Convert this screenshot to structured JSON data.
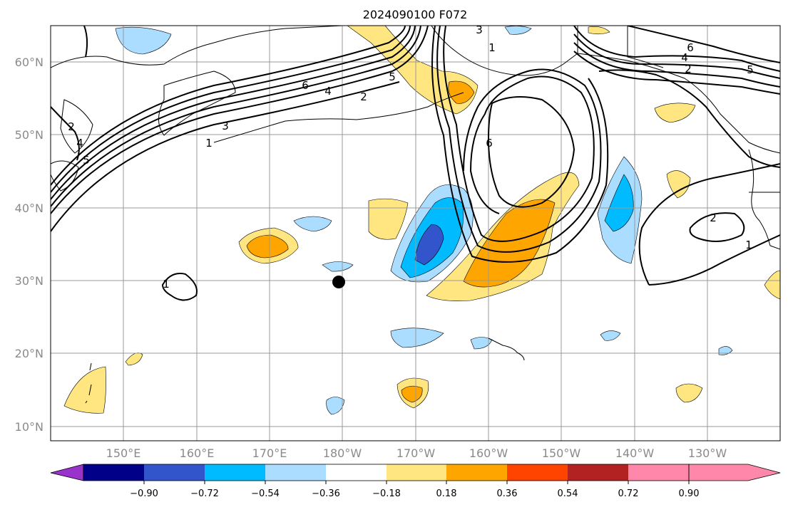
{
  "title": "2024090100 F072",
  "lat_labels": [
    "60°N",
    "50°N",
    "40°N",
    "30°N",
    "20°N",
    "10°N"
  ],
  "lon_labels": [
    "150°E",
    "160°E",
    "170°E",
    "180°W",
    "170°W",
    "160°W",
    "150°W",
    "140°W",
    "130°W"
  ],
  "colorbar": {
    "colors": [
      "#9933cc",
      "#000088",
      "#3355cc",
      "#00bbff",
      "#aaddff",
      "#ffffff",
      "#ffe680",
      "#ffa500",
      "#ff4400",
      "#b22222",
      "#ff88aa"
    ],
    "tick_labels": [
      "−0.90",
      "−0.72",
      "−0.54",
      "−0.36",
      "−0.18",
      "0.18",
      "0.36",
      "0.54",
      "0.72",
      "0.90"
    ]
  },
  "contour_labels": [
    "6",
    "4",
    "2",
    "5",
    "1",
    "3",
    "1",
    "3",
    "6",
    "4",
    "2",
    "5",
    "6",
    "2",
    "1",
    "1",
    "2",
    "4",
    "5"
  ],
  "map_extent": {
    "lon_min": 140,
    "lon_max": 242,
    "lat_min": 8,
    "lat_max": 65
  }
}
